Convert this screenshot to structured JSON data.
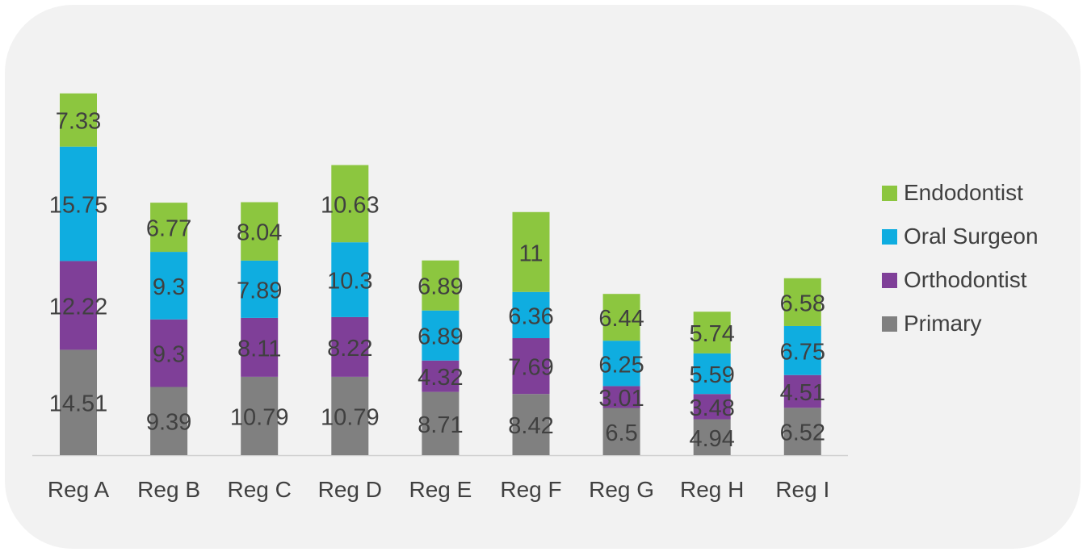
{
  "chart_data": {
    "type": "bar",
    "stacked": true,
    "categories": [
      "Reg A",
      "Reg B",
      "Reg C",
      "Reg D",
      "Reg E",
      "Reg F",
      "Reg G",
      "Reg H",
      "Reg I"
    ],
    "series": [
      {
        "name": "Primary",
        "color": "#808080",
        "values": [
          14.51,
          9.39,
          10.79,
          10.79,
          8.71,
          8.42,
          6.5,
          4.94,
          6.52
        ]
      },
      {
        "name": "Orthodontist",
        "color": "#7f3f98",
        "values": [
          12.22,
          9.3,
          8.11,
          8.22,
          4.32,
          7.69,
          3.01,
          3.48,
          4.51
        ]
      },
      {
        "name": "Oral Surgeon",
        "color": "#0fade0",
        "values": [
          15.75,
          9.3,
          7.89,
          10.3,
          6.89,
          6.36,
          6.25,
          5.59,
          6.75
        ]
      },
      {
        "name": "Endodontist",
        "color": "#8cc63f",
        "values": [
          7.33,
          6.77,
          8.04,
          10.63,
          6.89,
          11,
          6.44,
          5.74,
          6.58
        ]
      }
    ],
    "ylim": [
      0,
      50
    ],
    "legend_position": "right",
    "legend_order": [
      "Endodontist",
      "Oral Surgeon",
      "Orthodontist",
      "Primary"
    ],
    "grid": false,
    "title": "",
    "xlabel": "",
    "ylabel": ""
  }
}
